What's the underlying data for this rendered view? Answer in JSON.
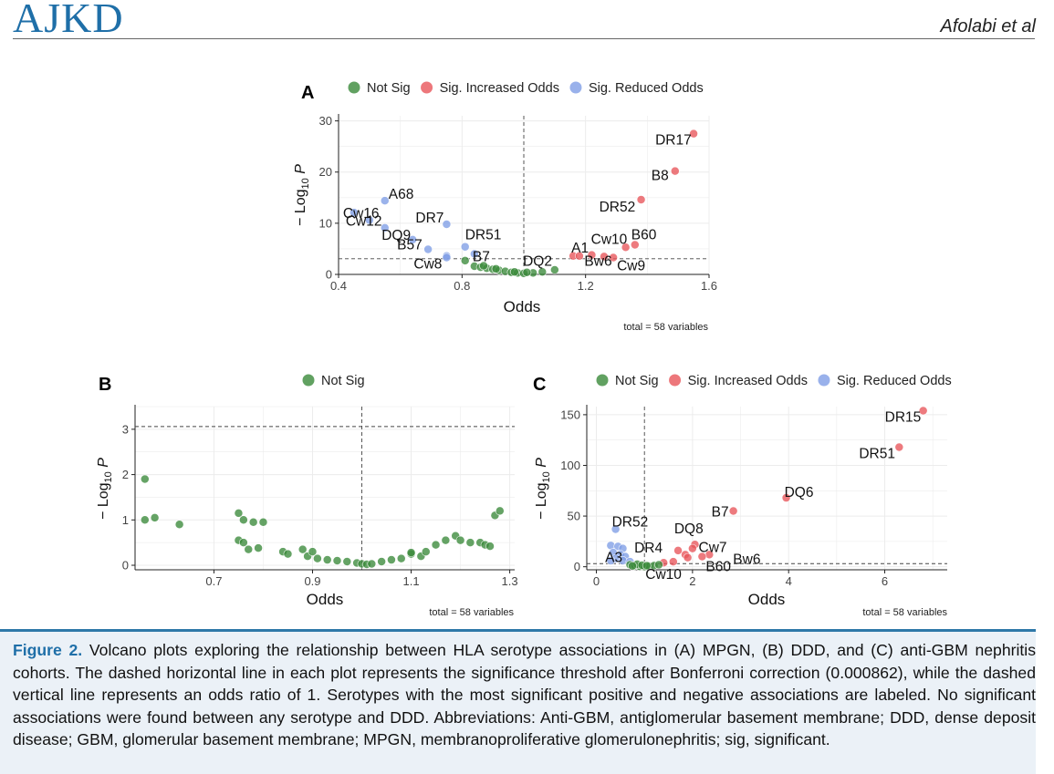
{
  "header": {
    "journal": "AJKD",
    "author": "Afolabi et al"
  },
  "colors": {
    "not_sig": "#3a8a3a",
    "increased": "#e8555a",
    "reduced": "#7f9ee6",
    "journal_blue": "#1f6fa8"
  },
  "chart_data": [
    {
      "panel": "A",
      "type": "scatter",
      "xlabel": "Odds",
      "ylabel": "−Log10 P",
      "ylabel_main": "− Log",
      "ylabel_sub": "10",
      "ylabel_p": "P",
      "xlim": [
        0.4,
        1.6
      ],
      "ylim": [
        0,
        31
      ],
      "xticks": [
        0.4,
        0.8,
        1.2,
        1.6
      ],
      "xtick_labels": [
        "0.4",
        "0.8",
        "1.2",
        "1.6"
      ],
      "yticks": [
        0,
        10,
        20,
        30
      ],
      "ytick_labels": [
        "0",
        "10",
        "20",
        "30"
      ],
      "threshold": 3.06,
      "vline": 1.0,
      "legend": [
        {
          "label": "Not Sig",
          "color": "#3a8a3a"
        },
        {
          "label": "Sig. Increased Odds",
          "color": "#e8555a"
        },
        {
          "label": "Sig. Reduced Odds",
          "color": "#7f9ee6"
        }
      ],
      "total": "total = 58 variables",
      "points": [
        {
          "x": 1.55,
          "y": 27.5,
          "c": "inc"
        },
        {
          "x": 1.49,
          "y": 20.2,
          "c": "inc"
        },
        {
          "x": 1.38,
          "y": 14.6,
          "c": "inc"
        },
        {
          "x": 1.36,
          "y": 5.8,
          "c": "inc"
        },
        {
          "x": 1.33,
          "y": 5.3,
          "c": "inc"
        },
        {
          "x": 1.22,
          "y": 3.8,
          "c": "inc"
        },
        {
          "x": 1.26,
          "y": 3.5,
          "c": "inc"
        },
        {
          "x": 1.29,
          "y": 3.3,
          "c": "inc"
        },
        {
          "x": 1.16,
          "y": 3.6,
          "c": "inc"
        },
        {
          "x": 1.18,
          "y": 3.6,
          "c": "inc"
        },
        {
          "x": 0.55,
          "y": 14.4,
          "c": "red"
        },
        {
          "x": 0.45,
          "y": 12.1,
          "c": "red"
        },
        {
          "x": 0.5,
          "y": 10.6,
          "c": "red"
        },
        {
          "x": 0.55,
          "y": 9.1,
          "c": "red"
        },
        {
          "x": 0.75,
          "y": 9.8,
          "c": "red"
        },
        {
          "x": 0.64,
          "y": 6.8,
          "c": "red"
        },
        {
          "x": 0.81,
          "y": 5.4,
          "c": "red"
        },
        {
          "x": 0.84,
          "y": 4.0,
          "c": "red"
        },
        {
          "x": 0.75,
          "y": 3.6,
          "c": "red"
        },
        {
          "x": 0.69,
          "y": 4.9,
          "c": "red"
        },
        {
          "x": 0.75,
          "y": 3.3,
          "c": "red"
        },
        {
          "x": 0.81,
          "y": 2.7,
          "c": "ns"
        },
        {
          "x": 0.84,
          "y": 1.6,
          "c": "ns"
        },
        {
          "x": 0.86,
          "y": 1.4,
          "c": "ns"
        },
        {
          "x": 0.88,
          "y": 1.2,
          "c": "ns"
        },
        {
          "x": 0.9,
          "y": 1.0,
          "c": "ns"
        },
        {
          "x": 0.92,
          "y": 0.8,
          "c": "ns"
        },
        {
          "x": 0.94,
          "y": 0.6,
          "c": "ns"
        },
        {
          "x": 0.96,
          "y": 0.4,
          "c": "ns"
        },
        {
          "x": 0.98,
          "y": 0.3,
          "c": "ns"
        },
        {
          "x": 1.0,
          "y": 0.2,
          "c": "ns"
        },
        {
          "x": 1.03,
          "y": 0.3,
          "c": "ns"
        },
        {
          "x": 1.06,
          "y": 0.5,
          "c": "ns"
        },
        {
          "x": 1.1,
          "y": 0.9,
          "c": "ns"
        },
        {
          "x": 0.87,
          "y": 1.7,
          "c": "ns"
        },
        {
          "x": 0.91,
          "y": 1.1,
          "c": "ns"
        },
        {
          "x": 1.01,
          "y": 0.4,
          "c": "ns"
        },
        {
          "x": 0.97,
          "y": 0.5,
          "c": "ns"
        }
      ],
      "labels": [
        {
          "text": "DR17",
          "x": 1.55,
          "y": 27.5
        },
        {
          "text": "B8",
          "x": 1.49,
          "y": 20.2
        },
        {
          "text": "DR52",
          "x": 1.38,
          "y": 14.6
        },
        {
          "text": "B60",
          "x": 1.36,
          "y": 5.8
        },
        {
          "text": "Cw10",
          "x": 1.33,
          "y": 5.3
        },
        {
          "text": "A1",
          "x": 1.16,
          "y": 3.6
        },
        {
          "text": "DQ2",
          "x": 1.08,
          "y": 3.5
        },
        {
          "text": "Bw6",
          "x": 1.22,
          "y": 3.8
        },
        {
          "text": "Cw9",
          "x": 1.29,
          "y": 3.3
        },
        {
          "text": "A68",
          "x": 0.55,
          "y": 14.4
        },
        {
          "text": "Cw16",
          "x": 0.45,
          "y": 12.1
        },
        {
          "text": "Cw12",
          "x": 0.5,
          "y": 10.6
        },
        {
          "text": "DR7",
          "x": 0.75,
          "y": 9.8
        },
        {
          "text": "DQ9",
          "x": 0.64,
          "y": 6.8
        },
        {
          "text": "DR51",
          "x": 0.81,
          "y": 5.4
        },
        {
          "text": "B57",
          "x": 0.69,
          "y": 4.9
        },
        {
          "text": "B7",
          "x": 0.84,
          "y": 4.0
        },
        {
          "text": "Cw8",
          "x": 0.75,
          "y": 3.3
        }
      ]
    },
    {
      "panel": "B",
      "type": "scatter",
      "xlabel": "Odds",
      "ylabel": "−Log10 P",
      "ylabel_main": "− Log",
      "ylabel_sub": "10",
      "ylabel_p": "P",
      "xlim": [
        0.54,
        1.31
      ],
      "ylim": [
        -0.1,
        3.5
      ],
      "xticks": [
        0.7,
        0.9,
        1.1,
        1.3
      ],
      "xtick_labels": [
        "0.7",
        "0.9",
        "1.1",
        "1.3"
      ],
      "yticks": [
        0,
        1,
        2,
        3
      ],
      "ytick_labels": [
        "0",
        "1",
        "2",
        "3"
      ],
      "threshold": 3.06,
      "vline": 1.0,
      "legend": [
        {
          "label": "Not Sig",
          "color": "#3a8a3a"
        }
      ],
      "total": "total = 58 variables",
      "points": [
        {
          "x": 0.56,
          "y": 1.9
        },
        {
          "x": 0.56,
          "y": 1.0
        },
        {
          "x": 0.58,
          "y": 1.05
        },
        {
          "x": 0.63,
          "y": 0.9
        },
        {
          "x": 0.75,
          "y": 1.15
        },
        {
          "x": 0.76,
          "y": 1.0
        },
        {
          "x": 0.78,
          "y": 0.95
        },
        {
          "x": 0.8,
          "y": 0.95
        },
        {
          "x": 0.75,
          "y": 0.55
        },
        {
          "x": 0.76,
          "y": 0.5
        },
        {
          "x": 0.77,
          "y": 0.35
        },
        {
          "x": 0.79,
          "y": 0.38
        },
        {
          "x": 0.84,
          "y": 0.3
        },
        {
          "x": 0.85,
          "y": 0.25
        },
        {
          "x": 0.88,
          "y": 0.35
        },
        {
          "x": 0.89,
          "y": 0.2
        },
        {
          "x": 0.9,
          "y": 0.3
        },
        {
          "x": 0.91,
          "y": 0.15
        },
        {
          "x": 0.93,
          "y": 0.12
        },
        {
          "x": 0.95,
          "y": 0.1
        },
        {
          "x": 0.97,
          "y": 0.08
        },
        {
          "x": 0.99,
          "y": 0.05
        },
        {
          "x": 1.0,
          "y": 0.03
        },
        {
          "x": 1.01,
          "y": 0.02
        },
        {
          "x": 1.02,
          "y": 0.03
        },
        {
          "x": 1.04,
          "y": 0.08
        },
        {
          "x": 1.06,
          "y": 0.12
        },
        {
          "x": 1.08,
          "y": 0.15
        },
        {
          "x": 1.1,
          "y": 0.25
        },
        {
          "x": 1.12,
          "y": 0.2
        },
        {
          "x": 1.13,
          "y": 0.3
        },
        {
          "x": 1.15,
          "y": 0.45
        },
        {
          "x": 1.17,
          "y": 0.55
        },
        {
          "x": 1.19,
          "y": 0.65
        },
        {
          "x": 1.2,
          "y": 0.55
        },
        {
          "x": 1.22,
          "y": 0.5
        },
        {
          "x": 1.24,
          "y": 0.5
        },
        {
          "x": 1.25,
          "y": 0.45
        },
        {
          "x": 1.26,
          "y": 0.42
        },
        {
          "x": 1.27,
          "y": 1.1
        },
        {
          "x": 1.28,
          "y": 1.2
        },
        {
          "x": 1.1,
          "y": 0.28
        }
      ]
    },
    {
      "panel": "C",
      "type": "scatter",
      "xlabel": "Odds",
      "ylabel": "−Log10 P",
      "ylabel_main": "− Log",
      "ylabel_sub": "10",
      "ylabel_p": "P",
      "xlim": [
        -0.2,
        7.3
      ],
      "ylim": [
        -3,
        158
      ],
      "xticks": [
        0,
        2,
        4,
        6
      ],
      "xtick_labels": [
        "0",
        "2",
        "4",
        "6"
      ],
      "yticks": [
        0,
        50,
        100,
        150
      ],
      "ytick_labels": [
        "0",
        "50",
        "100",
        "150"
      ],
      "threshold": 3.06,
      "vline": 1.0,
      "legend": [
        {
          "label": "Not Sig",
          "color": "#3a8a3a"
        },
        {
          "label": "Sig. Increased Odds",
          "color": "#e8555a"
        },
        {
          "label": "Sig. Reduced Odds",
          "color": "#7f9ee6"
        }
      ],
      "total": "total = 58 variables",
      "points": [
        {
          "x": 6.8,
          "y": 154,
          "c": "inc"
        },
        {
          "x": 6.3,
          "y": 118,
          "c": "inc"
        },
        {
          "x": 3.95,
          "y": 68,
          "c": "inc"
        },
        {
          "x": 2.85,
          "y": 55,
          "c": "inc"
        },
        {
          "x": 2.05,
          "y": 22,
          "c": "inc"
        },
        {
          "x": 2.0,
          "y": 18,
          "c": "inc"
        },
        {
          "x": 1.7,
          "y": 16,
          "c": "inc"
        },
        {
          "x": 1.85,
          "y": 12,
          "c": "inc"
        },
        {
          "x": 2.35,
          "y": 12,
          "c": "inc"
        },
        {
          "x": 1.9,
          "y": 9,
          "c": "inc"
        },
        {
          "x": 2.2,
          "y": 10,
          "c": "inc"
        },
        {
          "x": 1.4,
          "y": 4,
          "c": "inc"
        },
        {
          "x": 1.6,
          "y": 5,
          "c": "inc"
        },
        {
          "x": 0.4,
          "y": 37,
          "c": "red"
        },
        {
          "x": 0.3,
          "y": 21,
          "c": "red"
        },
        {
          "x": 0.45,
          "y": 20,
          "c": "red"
        },
        {
          "x": 0.55,
          "y": 18,
          "c": "red"
        },
        {
          "x": 0.35,
          "y": 14,
          "c": "red"
        },
        {
          "x": 0.5,
          "y": 12,
          "c": "red"
        },
        {
          "x": 0.6,
          "y": 10,
          "c": "red"
        },
        {
          "x": 0.4,
          "y": 8,
          "c": "red"
        },
        {
          "x": 0.3,
          "y": 6,
          "c": "red"
        },
        {
          "x": 0.55,
          "y": 6,
          "c": "red"
        },
        {
          "x": 0.7,
          "y": 5,
          "c": "red"
        },
        {
          "x": 0.7,
          "y": 2,
          "c": "ns"
        },
        {
          "x": 0.8,
          "y": 1,
          "c": "ns"
        },
        {
          "x": 0.9,
          "y": 0.5,
          "c": "ns"
        },
        {
          "x": 1.0,
          "y": 0.3,
          "c": "ns"
        },
        {
          "x": 1.1,
          "y": 0.6,
          "c": "ns"
        },
        {
          "x": 1.2,
          "y": 1.2,
          "c": "ns"
        },
        {
          "x": 1.3,
          "y": 2,
          "c": "ns"
        },
        {
          "x": 0.85,
          "y": 2.5,
          "c": "ns"
        },
        {
          "x": 0.95,
          "y": 1.5,
          "c": "ns"
        },
        {
          "x": 1.05,
          "y": 1,
          "c": "ns"
        },
        {
          "x": 0.75,
          "y": 0.8,
          "c": "ns"
        }
      ],
      "labels": [
        {
          "text": "DR15",
          "x": 6.8,
          "y": 154
        },
        {
          "text": "DR51",
          "x": 6.3,
          "y": 118
        },
        {
          "text": "DQ6",
          "x": 3.95,
          "y": 68
        },
        {
          "text": "B7",
          "x": 2.85,
          "y": 55
        },
        {
          "text": "DR52",
          "x": 0.4,
          "y": 37
        },
        {
          "text": "DQ8",
          "x": 2.0,
          "y": 22
        },
        {
          "text": "DR4",
          "x": 1.7,
          "y": 16
        },
        {
          "text": "Cw7",
          "x": 2.05,
          "y": 18
        },
        {
          "text": "Bw6",
          "x": 2.35,
          "y": 12
        },
        {
          "text": "A3",
          "x": 0.6,
          "y": 10
        },
        {
          "text": "Cw10",
          "x": 1.4,
          "y": 4
        },
        {
          "text": "B60",
          "x": 2.2,
          "y": 10
        }
      ]
    }
  ],
  "caption": {
    "label": "Figure 2.",
    "text": "Volcano plots exploring the relationship between HLA serotype associations in (A) MPGN, (B) DDD, and (C) anti-GBM nephritis cohorts. The dashed horizontal line in each plot represents the significance threshold after Bonferroni correction (0.000862), while the dashed vertical line represents an odds ratio of 1. Serotypes with the most significant positive and negative associations are labeled. No significant associations were found between any serotype and DDD. Abbreviations: Anti-GBM, antiglomerular basement membrane; DDD, dense deposit disease; GBM, glomerular basement membrane; MPGN, membranoproliferative glomerulonephritis; sig, significant."
  }
}
